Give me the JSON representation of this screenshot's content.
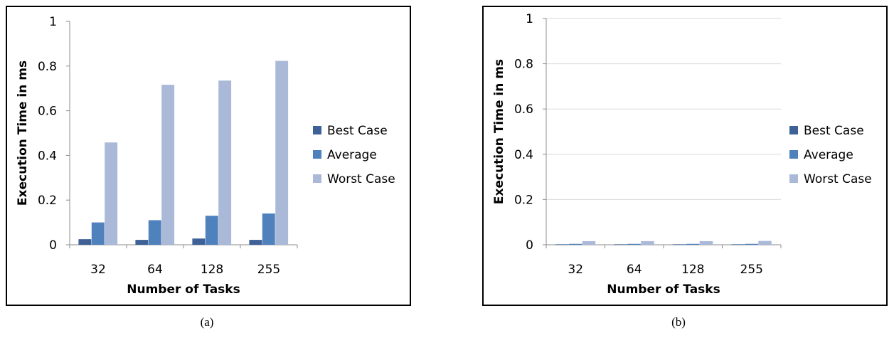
{
  "chart_data": [
    {
      "type": "bar",
      "panel": "a",
      "caption": "(a)",
      "categories": [
        "32",
        "64",
        "128",
        "255"
      ],
      "series": [
        {
          "name": "Best Case",
          "values": [
            0.025,
            0.022,
            0.028,
            0.022
          ]
        },
        {
          "name": "Average",
          "values": [
            0.1,
            0.11,
            0.13,
            0.14
          ]
        },
        {
          "name": "Worst Case",
          "values": [
            0.458,
            0.716,
            0.735,
            0.823
          ]
        }
      ],
      "xlabel": "Number of Tasks",
      "ylabel": "Execution Time in ms",
      "ylim": [
        0,
        1
      ],
      "yticks": [
        "0",
        "0.2",
        "0.4",
        "0.6",
        "0.8",
        "1"
      ],
      "grid": false,
      "legend": "right"
    },
    {
      "type": "bar",
      "panel": "b",
      "caption": "(b)",
      "categories": [
        "32",
        "64",
        "128",
        "255"
      ],
      "series": [
        {
          "name": "Best Case",
          "values": [
            0.002,
            0.002,
            0.002,
            0.002
          ]
        },
        {
          "name": "Average",
          "values": [
            0.004,
            0.004,
            0.004,
            0.004
          ]
        },
        {
          "name": "Worst Case",
          "values": [
            0.016,
            0.016,
            0.016,
            0.017
          ]
        }
      ],
      "xlabel": "Number of Tasks",
      "ylabel": "Execution Time in ms",
      "ylim": [
        0,
        1
      ],
      "yticks": [
        "0",
        "0.2",
        "0.4",
        "0.6",
        "0.8",
        "1"
      ],
      "grid": true,
      "legend": "right"
    }
  ],
  "colors": {
    "Best Case": "#3e6197",
    "Average": "#4f81bd",
    "Worst Case": "#aab9d8",
    "grid": "#d9d9d9",
    "axis": "#8c8c8c"
  }
}
